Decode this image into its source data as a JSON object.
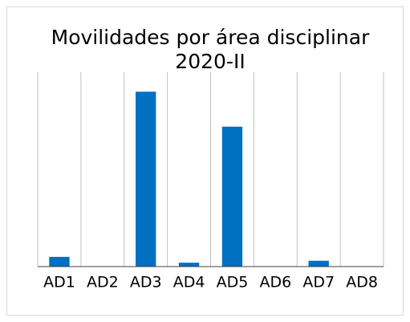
{
  "chart_data": {
    "type": "bar",
    "title": [
      "Movilidades por área disciplinar",
      "2020-II"
    ],
    "categories": [
      "AD1",
      "AD2",
      "AD3",
      "AD4",
      "AD5",
      "AD6",
      "AD7",
      "AD8"
    ],
    "values": [
      2.5,
      0,
      45,
      1,
      36,
      0,
      1.5,
      0
    ],
    "color": "#0070c0",
    "ylim": [
      0,
      50
    ]
  }
}
